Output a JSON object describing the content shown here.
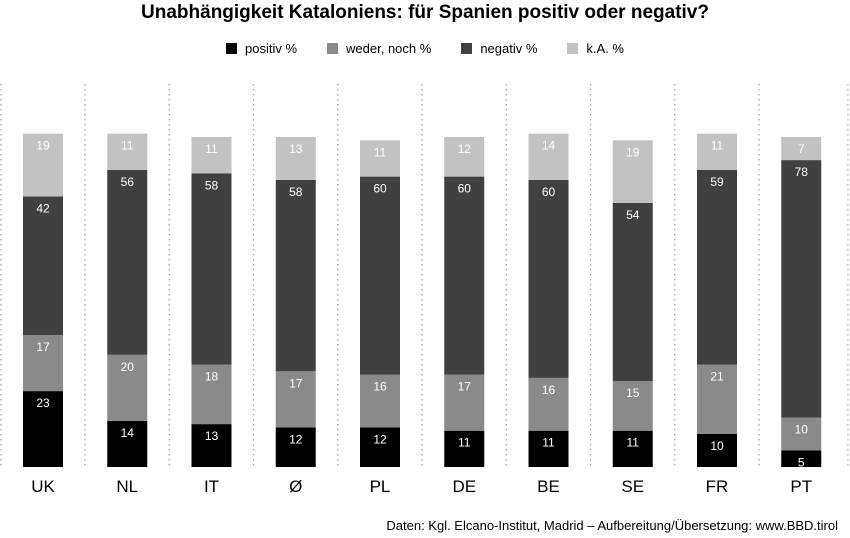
{
  "chart_data": {
    "type": "bar",
    "stacked": true,
    "orientation": "vertical",
    "title": "Unabhängigkeit Kataloniens: für Spanien positiv oder negativ?",
    "xlabel": "",
    "ylabel": "",
    "ylim": [
      0,
      100
    ],
    "grid": false,
    "legend_position": "top-center",
    "categories": [
      "UK",
      "NL",
      "IT",
      "Ø",
      "PL",
      "DE",
      "BE",
      "SE",
      "FR",
      "PT"
    ],
    "series": [
      {
        "name": "positiv %",
        "color": "#000000",
        "label_color": "#ffffff",
        "values": [
          23,
          14,
          13,
          12,
          12,
          11,
          11,
          11,
          10,
          5
        ]
      },
      {
        "name": "weder, noch %",
        "color": "#8a8a8a",
        "label_color": "#ffffff",
        "values": [
          17,
          20,
          18,
          17,
          16,
          17,
          16,
          15,
          21,
          10
        ]
      },
      {
        "name": "negativ %",
        "color": "#404040",
        "label_color": "#ffffff",
        "values": [
          42,
          56,
          58,
          58,
          60,
          60,
          60,
          54,
          59,
          78
        ]
      },
      {
        "name": "k.A. %",
        "color": "#c2c2c2",
        "label_color": "#ffffff",
        "values": [
          19,
          11,
          11,
          13,
          11,
          12,
          14,
          19,
          11,
          7
        ]
      }
    ],
    "source": "Daten: Kgl. Elcano-Institut, Madrid – Aufbereitung/Übersetzung: www.BBD.tirol"
  }
}
